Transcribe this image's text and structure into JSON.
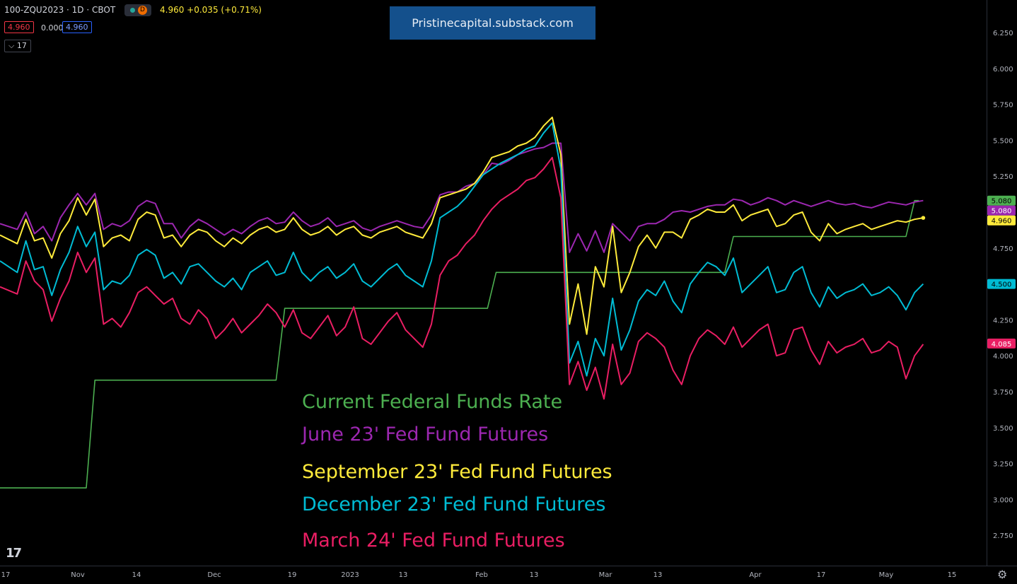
{
  "header": {
    "symbol": "100-ZQU2023 · 1D · CBOT",
    "status_dot": "market-open-dot",
    "delay_badge": "D",
    "last_change": "4.960 +0.035 (+0.71%)",
    "bid": "4.960",
    "spread": "0.000",
    "ask": "4.960",
    "indicators_count": "17"
  },
  "banner": "Pristinecapital.substack.com",
  "watermark": "17",
  "chart_data": {
    "type": "line",
    "x_tick_labels": [
      "17",
      "Nov",
      "14",
      "Dec",
      "19",
      "2023",
      "13",
      "Feb",
      "13",
      "Mar",
      "13",
      "Apr",
      "17",
      "May",
      "15"
    ],
    "y_tick_labels": [
      "6.250",
      "6.000",
      "5.750",
      "5.500",
      "5.250",
      "5.000",
      "4.750",
      "4.500",
      "4.250",
      "4.000",
      "3.750",
      "3.500",
      "3.250",
      "3.000",
      "2.750"
    ],
    "ylim": [
      2.625,
      6.375
    ],
    "grid": false,
    "price_labels": [
      {
        "text": "5.080",
        "value": 5.08,
        "color": "#4caf50"
      },
      {
        "text": "5.080",
        "value": 5.08,
        "color": "#9c27b0"
      },
      {
        "text": "4.960",
        "value": 4.96,
        "color": "#ffeb3b"
      },
      {
        "text": "4.500",
        "value": 4.5,
        "color": "#00bcd4"
      },
      {
        "text": "4.085",
        "value": 4.085,
        "color": "#e91e63"
      }
    ],
    "series": [
      {
        "name": "Current Federal Funds Rate",
        "color": "#4caf50",
        "x": [
          0,
          20,
          22,
          64,
          66,
          113,
          115,
          139,
          141,
          168,
          170,
          174,
          176,
          210,
          212,
          213
        ],
        "values": [
          3.08,
          3.08,
          3.83,
          3.83,
          4.33,
          4.33,
          4.58,
          4.58,
          4.58,
          4.58,
          4.83,
          4.83,
          4.83,
          4.83,
          5.08,
          5.08
        ]
      },
      {
        "name": "June 23' Fed Fund Futures",
        "color": "#9c27b0",
        "x": [
          0,
          4,
          6,
          8,
          10,
          12,
          14,
          16,
          18,
          20,
          22,
          24,
          26,
          28,
          30,
          32,
          34,
          36,
          38,
          40,
          42,
          44,
          46,
          48,
          50,
          52,
          54,
          56,
          58,
          60,
          62,
          64,
          66,
          68,
          70,
          72,
          74,
          76,
          78,
          80,
          82,
          84,
          86,
          88,
          90,
          92,
          94,
          96,
          98,
          100,
          102,
          104,
          106,
          108,
          110,
          112,
          114,
          116,
          118,
          120,
          122,
          124,
          126,
          128,
          130,
          132,
          134,
          136,
          138,
          140,
          142,
          144,
          146,
          148,
          150,
          152,
          154,
          156,
          158,
          160,
          162,
          164,
          166,
          168,
          170,
          172,
          174,
          176,
          178,
          180,
          182,
          184,
          186,
          188,
          190,
          192,
          194,
          196,
          198,
          200,
          202,
          204,
          206,
          208,
          210,
          212,
          214
        ],
        "values": [
          4.92,
          4.88,
          5.0,
          4.85,
          4.9,
          4.8,
          4.96,
          5.05,
          5.13,
          5.05,
          5.13,
          4.88,
          4.92,
          4.9,
          4.94,
          5.04,
          5.08,
          5.06,
          4.92,
          4.92,
          4.82,
          4.9,
          4.95,
          4.92,
          4.88,
          4.84,
          4.88,
          4.85,
          4.9,
          4.94,
          4.96,
          4.92,
          4.93,
          5.0,
          4.94,
          4.9,
          4.92,
          4.96,
          4.9,
          4.92,
          4.94,
          4.89,
          4.87,
          4.9,
          4.92,
          4.94,
          4.92,
          4.9,
          4.89,
          4.98,
          5.12,
          5.14,
          5.14,
          5.18,
          5.2,
          5.26,
          5.34,
          5.33,
          5.36,
          5.4,
          5.42,
          5.44,
          5.45,
          5.48,
          5.48,
          4.72,
          4.85,
          4.73,
          4.87,
          4.72,
          4.92,
          4.86,
          4.8,
          4.9,
          4.92,
          4.92,
          4.95,
          5.0,
          5.01,
          5.0,
          5.02,
          5.04,
          5.05,
          5.05,
          5.09,
          5.08,
          5.05,
          5.07,
          5.1,
          5.08,
          5.05,
          5.08,
          5.06,
          5.04,
          5.06,
          5.08,
          5.06,
          5.05,
          5.06,
          5.04,
          5.03,
          5.05,
          5.07,
          5.06,
          5.05,
          5.07,
          5.08
        ]
      },
      {
        "name": "September 23' Fed Fund Futures",
        "color": "#ffeb3b",
        "x": [
          0,
          4,
          6,
          8,
          10,
          12,
          14,
          16,
          18,
          20,
          22,
          24,
          26,
          28,
          30,
          32,
          34,
          36,
          38,
          40,
          42,
          44,
          46,
          48,
          50,
          52,
          54,
          56,
          58,
          60,
          62,
          64,
          66,
          68,
          70,
          72,
          74,
          76,
          78,
          80,
          82,
          84,
          86,
          88,
          90,
          92,
          94,
          96,
          98,
          100,
          102,
          104,
          106,
          108,
          110,
          112,
          114,
          116,
          118,
          120,
          122,
          124,
          126,
          128,
          130,
          132,
          134,
          136,
          138,
          140,
          142,
          144,
          146,
          148,
          150,
          152,
          154,
          156,
          158,
          160,
          162,
          164,
          166,
          168,
          170,
          172,
          174,
          176,
          178,
          180,
          182,
          184,
          186,
          188,
          190,
          192,
          194,
          196,
          198,
          200,
          202,
          204,
          206,
          208,
          210,
          212,
          214
        ],
        "values": [
          4.84,
          4.78,
          4.95,
          4.8,
          4.82,
          4.68,
          4.85,
          4.94,
          5.1,
          4.98,
          5.09,
          4.76,
          4.82,
          4.84,
          4.8,
          4.95,
          5.0,
          4.98,
          4.82,
          4.84,
          4.76,
          4.84,
          4.88,
          4.86,
          4.8,
          4.76,
          4.82,
          4.78,
          4.84,
          4.88,
          4.9,
          4.86,
          4.88,
          4.96,
          4.88,
          4.84,
          4.86,
          4.9,
          4.84,
          4.88,
          4.9,
          4.84,
          4.82,
          4.86,
          4.88,
          4.9,
          4.86,
          4.84,
          4.82,
          4.92,
          5.1,
          5.12,
          5.14,
          5.16,
          5.2,
          5.28,
          5.38,
          5.4,
          5.42,
          5.46,
          5.48,
          5.52,
          5.6,
          5.66,
          5.4,
          4.22,
          4.5,
          4.15,
          4.62,
          4.48,
          4.9,
          4.44,
          4.58,
          4.76,
          4.84,
          4.75,
          4.86,
          4.86,
          4.82,
          4.95,
          4.98,
          5.02,
          5.0,
          5.0,
          5.05,
          4.94,
          4.98,
          5.0,
          5.02,
          4.9,
          4.92,
          4.98,
          5.0,
          4.86,
          4.8,
          4.92,
          4.85,
          4.88,
          4.9,
          4.92,
          4.88,
          4.9,
          4.92,
          4.94,
          4.93,
          4.95,
          4.96
        ]
      },
      {
        "name": "December 23' Fed Fund Futures",
        "color": "#00bcd4",
        "x": [
          0,
          4,
          6,
          8,
          10,
          12,
          14,
          16,
          18,
          20,
          22,
          24,
          26,
          28,
          30,
          32,
          34,
          36,
          38,
          40,
          42,
          44,
          46,
          48,
          50,
          52,
          54,
          56,
          58,
          60,
          62,
          64,
          66,
          68,
          70,
          72,
          74,
          76,
          78,
          80,
          82,
          84,
          86,
          88,
          90,
          92,
          94,
          96,
          98,
          100,
          102,
          104,
          106,
          108,
          110,
          112,
          114,
          116,
          118,
          120,
          122,
          124,
          126,
          128,
          130,
          132,
          134,
          136,
          138,
          140,
          142,
          144,
          146,
          148,
          150,
          152,
          154,
          156,
          158,
          160,
          162,
          164,
          166,
          168,
          170,
          172,
          174,
          176,
          178,
          180,
          182,
          184,
          186,
          188,
          190,
          192,
          194,
          196,
          198,
          200,
          202,
          204,
          206,
          208,
          210,
          212,
          214
        ],
        "values": [
          4.66,
          4.58,
          4.8,
          4.6,
          4.62,
          4.42,
          4.6,
          4.72,
          4.9,
          4.76,
          4.86,
          4.46,
          4.52,
          4.5,
          4.56,
          4.7,
          4.74,
          4.7,
          4.54,
          4.58,
          4.5,
          4.62,
          4.64,
          4.58,
          4.52,
          4.48,
          4.54,
          4.46,
          4.58,
          4.62,
          4.66,
          4.56,
          4.58,
          4.72,
          4.58,
          4.52,
          4.58,
          4.62,
          4.54,
          4.58,
          4.64,
          4.52,
          4.48,
          4.54,
          4.6,
          4.64,
          4.56,
          4.52,
          4.48,
          4.66,
          4.96,
          5.0,
          5.04,
          5.1,
          5.18,
          5.26,
          5.3,
          5.34,
          5.37,
          5.4,
          5.44,
          5.46,
          5.55,
          5.62,
          5.3,
          3.95,
          4.1,
          3.86,
          4.12,
          4.0,
          4.4,
          4.04,
          4.18,
          4.38,
          4.46,
          4.42,
          4.52,
          4.38,
          4.3,
          4.5,
          4.58,
          4.65,
          4.62,
          4.56,
          4.68,
          4.44,
          4.5,
          4.56,
          4.62,
          4.44,
          4.46,
          4.58,
          4.62,
          4.44,
          4.34,
          4.48,
          4.4,
          4.44,
          4.46,
          4.5,
          4.42,
          4.44,
          4.48,
          4.42,
          4.32,
          4.44,
          4.5
        ]
      },
      {
        "name": "March 24' Fed Fund Futures",
        "color": "#e91e63",
        "x": [
          0,
          4,
          6,
          8,
          10,
          12,
          14,
          16,
          18,
          20,
          22,
          24,
          26,
          28,
          30,
          32,
          34,
          36,
          38,
          40,
          42,
          44,
          46,
          48,
          50,
          52,
          54,
          56,
          58,
          60,
          62,
          64,
          66,
          68,
          70,
          72,
          74,
          76,
          78,
          80,
          82,
          84,
          86,
          88,
          90,
          92,
          94,
          96,
          98,
          100,
          102,
          104,
          106,
          108,
          110,
          112,
          114,
          116,
          118,
          120,
          122,
          124,
          126,
          128,
          130,
          132,
          134,
          136,
          138,
          140,
          142,
          144,
          146,
          148,
          150,
          152,
          154,
          156,
          158,
          160,
          162,
          164,
          166,
          168,
          170,
          172,
          174,
          176,
          178,
          180,
          182,
          184,
          186,
          188,
          190,
          192,
          194,
          196,
          198,
          200,
          202,
          204,
          206,
          208,
          210,
          212,
          214
        ],
        "values": [
          4.48,
          4.43,
          4.66,
          4.52,
          4.46,
          4.24,
          4.4,
          4.52,
          4.72,
          4.58,
          4.68,
          4.22,
          4.26,
          4.2,
          4.3,
          4.44,
          4.48,
          4.42,
          4.36,
          4.4,
          4.26,
          4.22,
          4.32,
          4.26,
          4.12,
          4.18,
          4.26,
          4.16,
          4.22,
          4.28,
          4.36,
          4.3,
          4.2,
          4.32,
          4.16,
          4.12,
          4.2,
          4.28,
          4.14,
          4.2,
          4.34,
          4.12,
          4.08,
          4.16,
          4.24,
          4.3,
          4.18,
          4.12,
          4.06,
          4.22,
          4.56,
          4.66,
          4.7,
          4.78,
          4.84,
          4.94,
          5.02,
          5.08,
          5.12,
          5.16,
          5.22,
          5.24,
          5.3,
          5.38,
          5.1,
          3.8,
          3.96,
          3.76,
          3.92,
          3.7,
          4.08,
          3.8,
          3.88,
          4.1,
          4.16,
          4.12,
          4.06,
          3.9,
          3.8,
          4.0,
          4.12,
          4.18,
          4.14,
          4.08,
          4.2,
          4.06,
          4.12,
          4.18,
          4.22,
          4.0,
          4.02,
          4.18,
          4.2,
          4.04,
          3.94,
          4.1,
          4.02,
          4.06,
          4.08,
          4.12,
          4.02,
          4.04,
          4.1,
          4.06,
          3.84,
          4.0,
          4.08
        ]
      }
    ]
  }
}
